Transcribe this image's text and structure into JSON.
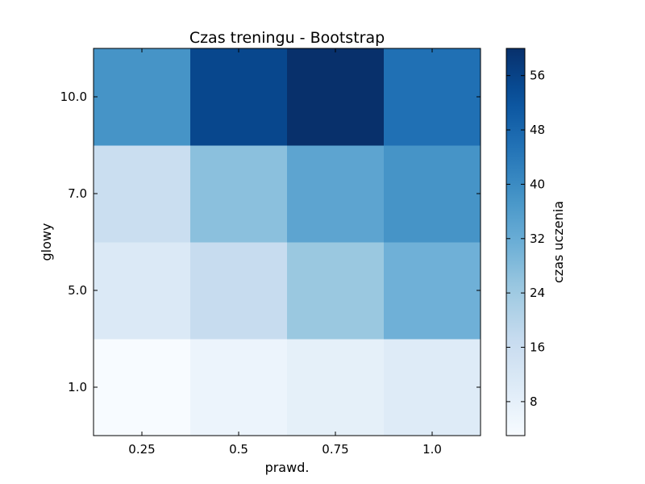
{
  "chart_data": {
    "type": "heatmap",
    "title": "Czas treningu - Bootstrap",
    "xlabel": "prawd.",
    "ylabel": "glowy",
    "x_categories": [
      "0.25",
      "0.5",
      "0.75",
      "1.0"
    ],
    "y_categories": [
      "1.0",
      "5.0",
      "7.0",
      "10.0"
    ],
    "values": [
      [
        3,
        6,
        8,
        10
      ],
      [
        11,
        17,
        25,
        31
      ],
      [
        16,
        27,
        34,
        38
      ],
      [
        38,
        55,
        60,
        46
      ]
    ],
    "colorbar": {
      "label": "czas uczenia",
      "min": 3,
      "max": 60,
      "ticks": [
        8,
        16,
        24,
        32,
        40,
        48,
        56
      ],
      "colormap": "Blues"
    },
    "grid": false
  }
}
